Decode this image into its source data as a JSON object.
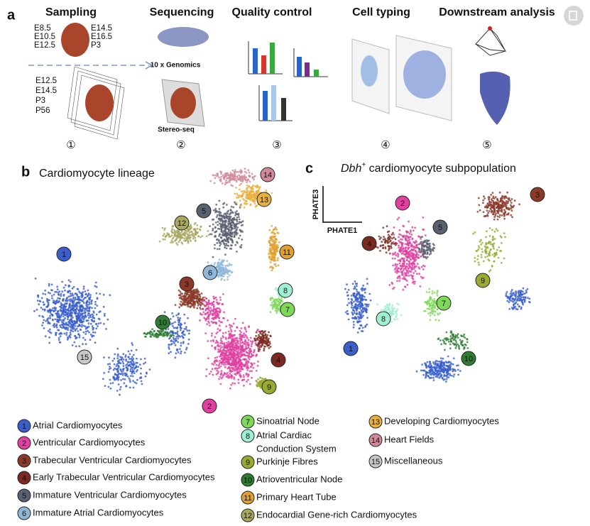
{
  "panel_a": {
    "label": "a",
    "steps": [
      {
        "title": "Sampling",
        "number": "①"
      },
      {
        "title": "Sequencing",
        "number": "②"
      },
      {
        "title": "Quality control",
        "number": "③"
      },
      {
        "title": "Cell typing",
        "number": "④"
      },
      {
        "title": "Downstream analysis",
        "number": "⑤"
      }
    ],
    "sampling_stages_left": [
      "E8.5",
      "E10.5",
      "E12.5"
    ],
    "sampling_stages_right": [
      "E14.5",
      "E16.5",
      "P3"
    ],
    "spatial_stages": [
      "E12.5",
      "E14.5",
      "P3",
      "P56"
    ],
    "platform_single_cell": "10 x Genomics",
    "platform_spatial": "Stereo-seq"
  },
  "panel_b": {
    "label": "b",
    "title": "Cardiomyocyte lineage",
    "markers": [
      "1",
      "2",
      "3",
      "4",
      "5",
      "6",
      "7",
      "8",
      "9",
      "10",
      "11",
      "12",
      "13",
      "14",
      "15"
    ]
  },
  "panel_c": {
    "label": "c",
    "title_gene": "Dbh",
    "title_sup": "+",
    "title_rest": " cardiomyocyte subpopulation",
    "y_axis": "PHATE3",
    "x_axis": "PHATE1",
    "markers": [
      "1",
      "2",
      "3",
      "4",
      "5",
      "7",
      "8",
      "9",
      "10"
    ]
  },
  "legend": [
    {
      "number": "1",
      "lines": [
        "Atrial Cardiomyocytes"
      ],
      "color": "#3a5fcd"
    },
    {
      "number": "2",
      "lines": [
        "Ventricular Cardiomyocytes"
      ],
      "color": "#e040a0"
    },
    {
      "number": "3",
      "lines": [
        "Trabecular Ventricular Cardiomyocytes"
      ],
      "color": "#8b3a2a"
    },
    {
      "number": "4",
      "lines": [
        "Early Trabecular Ventricular Cardiomyocytes"
      ],
      "color": "#7a2a20"
    },
    {
      "number": "5",
      "lines": [
        "Immature Ventricular Cardiomyocytes"
      ],
      "color": "#5a6070"
    },
    {
      "number": "6",
      "lines": [
        "Immature Atrial Cardiomyocytes"
      ],
      "color": "#8fb8d8"
    },
    {
      "number": "7",
      "lines": [
        "Sinoatrial Node"
      ],
      "color": "#7ed957"
    },
    {
      "number": "8",
      "lines": [
        "Atrial Cardiac",
        "Conduction System"
      ],
      "color": "#9ff0d0"
    },
    {
      "number": "9",
      "lines": [
        "Purkinje Fibres"
      ],
      "color": "#9aaa30"
    },
    {
      "number": "10",
      "lines": [
        "Atrioventricular Node"
      ],
      "color": "#2e7d32"
    },
    {
      "number": "11",
      "lines": [
        "Primary Heart Tube"
      ],
      "color": "#e0a030"
    },
    {
      "number": "12",
      "lines": [
        "Endocardial Gene-rich Cardiomyocytes"
      ],
      "color": "#a8a860"
    },
    {
      "number": "13",
      "lines": [
        "Developing Cardiomyocytes"
      ],
      "color": "#e8b040"
    },
    {
      "number": "14",
      "lines": [
        "Heart Fields"
      ],
      "color": "#d08a9a"
    },
    {
      "number": "15",
      "lines": [
        "Miscellaneous"
      ],
      "color": "#c8c8c8"
    }
  ]
}
